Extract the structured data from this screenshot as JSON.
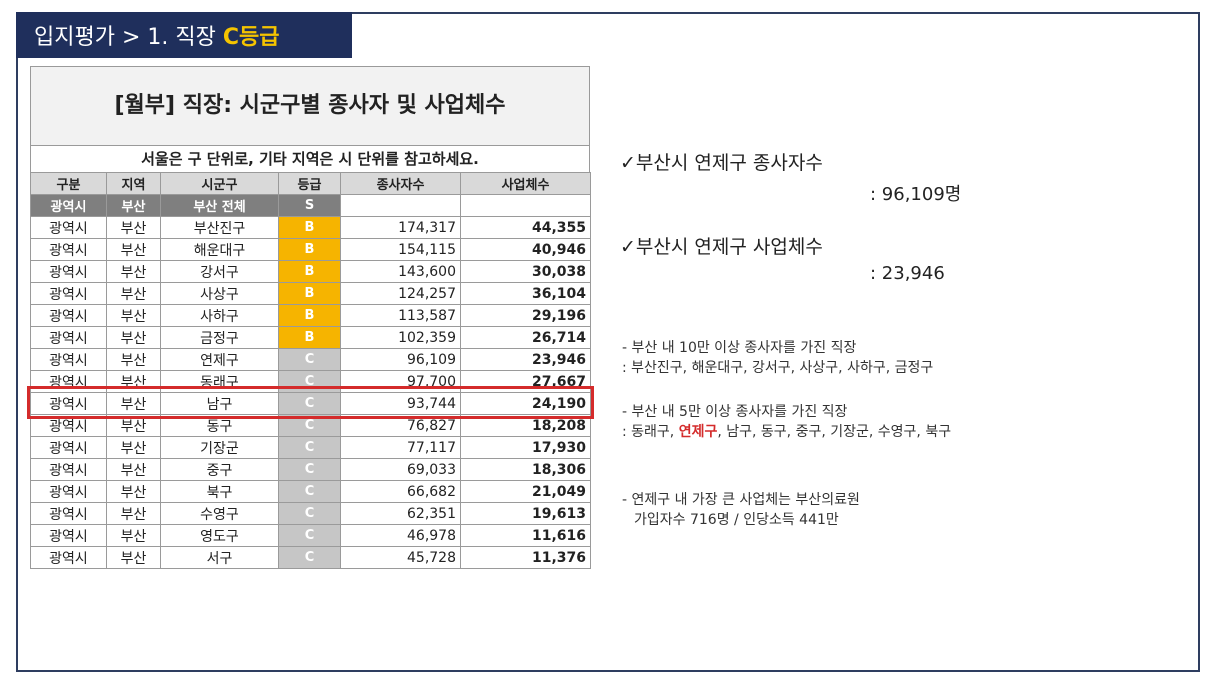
{
  "title": {
    "prefix": "입지평가 > 1. 직장 ",
    "grade": "C등급"
  },
  "table": {
    "header": "[월부] 직장: 시군구별 종사자 및 사업체수",
    "note": "서울은 구 단위로, 기타 지역은 시 단위를 참고하세요.",
    "columns": [
      "구분",
      "지역",
      "시군구",
      "등급",
      "종사자수",
      "사업체수"
    ],
    "total_row": {
      "type": "광역시",
      "region": "부산",
      "district": "부산 전체",
      "grade": "S"
    },
    "rows": [
      {
        "type": "광역시",
        "region": "부산",
        "district": "부산진구",
        "grade": "B",
        "workers": "174,317",
        "businesses": "44,355"
      },
      {
        "type": "광역시",
        "region": "부산",
        "district": "해운대구",
        "grade": "B",
        "workers": "154,115",
        "businesses": "40,946"
      },
      {
        "type": "광역시",
        "region": "부산",
        "district": "강서구",
        "grade": "B",
        "workers": "143,600",
        "businesses": "30,038"
      },
      {
        "type": "광역시",
        "region": "부산",
        "district": "사상구",
        "grade": "B",
        "workers": "124,257",
        "businesses": "36,104"
      },
      {
        "type": "광역시",
        "region": "부산",
        "district": "사하구",
        "grade": "B",
        "workers": "113,587",
        "businesses": "29,196"
      },
      {
        "type": "광역시",
        "region": "부산",
        "district": "금정구",
        "grade": "B",
        "workers": "102,359",
        "businesses": "26,714"
      },
      {
        "type": "광역시",
        "region": "부산",
        "district": "연제구",
        "grade": "C",
        "workers": "96,109",
        "businesses": "23,946"
      },
      {
        "type": "광역시",
        "region": "부산",
        "district": "동래구",
        "grade": "C",
        "workers": "97,700",
        "businesses": "27,667"
      },
      {
        "type": "광역시",
        "region": "부산",
        "district": "남구",
        "grade": "C",
        "workers": "93,744",
        "businesses": "24,190"
      },
      {
        "type": "광역시",
        "region": "부산",
        "district": "동구",
        "grade": "C",
        "workers": "76,827",
        "businesses": "18,208"
      },
      {
        "type": "광역시",
        "region": "부산",
        "district": "기장군",
        "grade": "C",
        "workers": "77,117",
        "businesses": "17,930"
      },
      {
        "type": "광역시",
        "region": "부산",
        "district": "중구",
        "grade": "C",
        "workers": "69,033",
        "businesses": "18,306"
      },
      {
        "type": "광역시",
        "region": "부산",
        "district": "북구",
        "grade": "C",
        "workers": "66,682",
        "businesses": "21,049"
      },
      {
        "type": "광역시",
        "region": "부산",
        "district": "수영구",
        "grade": "C",
        "workers": "62,351",
        "businesses": "19,613"
      },
      {
        "type": "광역시",
        "region": "부산",
        "district": "영도구",
        "grade": "C",
        "workers": "46,978",
        "businesses": "11,616"
      },
      {
        "type": "광역시",
        "region": "부산",
        "district": "서구",
        "grade": "C",
        "workers": "45,728",
        "businesses": "11,376"
      }
    ]
  },
  "stats": {
    "workers_label": "✓부산시 연제구 종사자수",
    "workers_value": ": 96,109명",
    "businesses_label": "✓부산시 연제구 사업체수",
    "businesses_value": ": 23,946"
  },
  "notes": {
    "note1_line1": "- 부산 내 10만 이상 종사자를 가진 직장",
    "note1_line2": ": 부산진구, 해운대구, 강서구, 사상구, 사하구, 금정구",
    "note2_line1": "- 부산 내 5만 이상 종사자를 가진 직장",
    "note2_line2_pre": ": 동래구, ",
    "note2_line2_red": "연제구",
    "note2_line2_post": ", 남구, 동구, 중구, 기장군, 수영구, 북구",
    "note3_line1": "- 연제구 내 가장 큰 사업체는 부산의료원",
    "note3_line2": "가입자수 716명 / 인당소득 441만"
  },
  "colors": {
    "title_bg": "#1f2f5c",
    "title_grade": "#f5c400",
    "grade_S": "#e8472a",
    "grade_B": "#f6b400",
    "grade_C": "#c6c6c6",
    "highlight": "#d42b2b"
  }
}
